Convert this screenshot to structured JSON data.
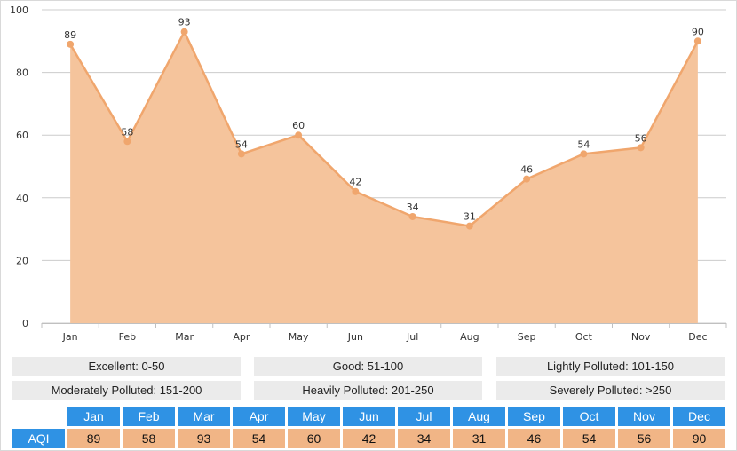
{
  "chart_data": {
    "type": "area",
    "categories": [
      "Jan",
      "Feb",
      "Mar",
      "Apr",
      "May",
      "Jun",
      "Jul",
      "Aug",
      "Sep",
      "Oct",
      "Nov",
      "Dec"
    ],
    "series": [
      {
        "values": [
          89,
          58,
          93,
          54,
          60,
          42,
          34,
          31,
          46,
          54,
          56,
          90
        ]
      }
    ],
    "ylim": [
      0,
      100
    ],
    "yticks": [
      0,
      20,
      40,
      60,
      80,
      100
    ],
    "grid": true,
    "data_labels": true,
    "colors": {
      "fill": "#f5c49c",
      "line": "#f0a66d",
      "grid": "#cccccc"
    }
  },
  "legend": {
    "items": [
      "Excellent: 0-50",
      "Good: 51-100",
      "Lightly Polluted: 101-150",
      "Moderately Polluted: 151-200",
      "Heavily Polluted: 201-250",
      "Severely Polluted: >250"
    ]
  },
  "table": {
    "row_label": "AQI",
    "colors": {
      "header": "#2f92e4",
      "value": "#f1b586"
    }
  }
}
